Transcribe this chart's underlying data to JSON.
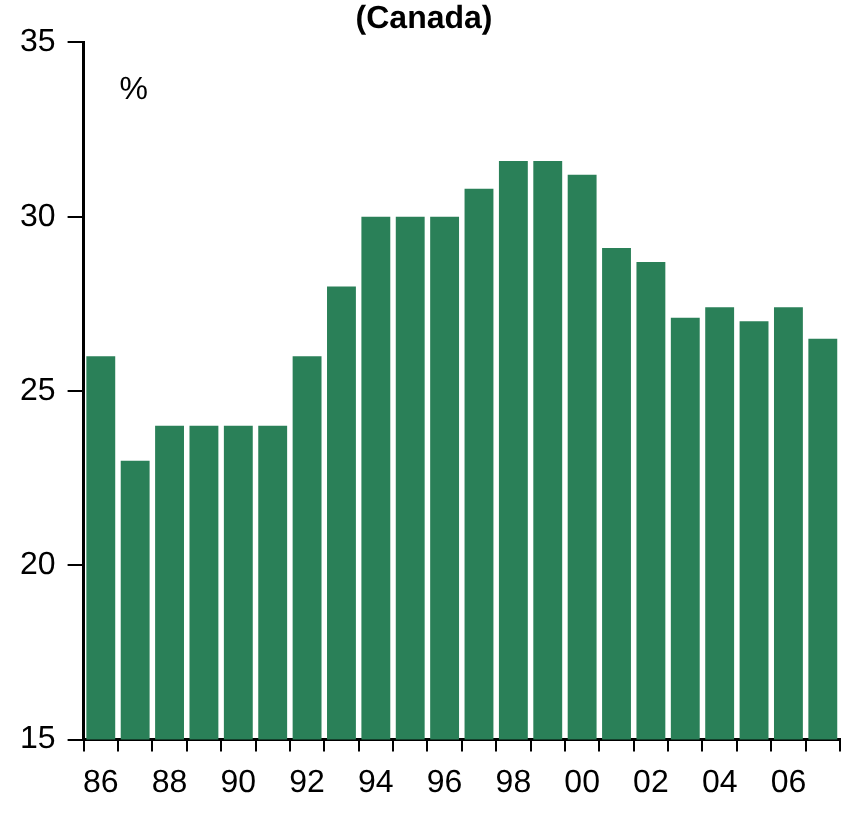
{
  "chart_data": {
    "type": "bar",
    "title": "(Canada)",
    "ylabel": "%",
    "categories": [
      "86",
      null,
      "88",
      null,
      "90",
      null,
      "92",
      null,
      "94",
      null,
      "96",
      null,
      "98",
      null,
      "00",
      null,
      "02",
      null,
      "04",
      null,
      "06",
      null
    ],
    "values": [
      26,
      23,
      24,
      24,
      24,
      24,
      26,
      28,
      30,
      30,
      30,
      30.8,
      31.6,
      31.6,
      31.2,
      29.1,
      28.7,
      27.1,
      27.4,
      27.0,
      27.4,
      26.5
    ],
    "color": "#2a8058",
    "ylim": [
      15,
      35
    ],
    "yticks": [
      15,
      20,
      25,
      30,
      35
    ],
    "grid": false,
    "legend": false
  }
}
